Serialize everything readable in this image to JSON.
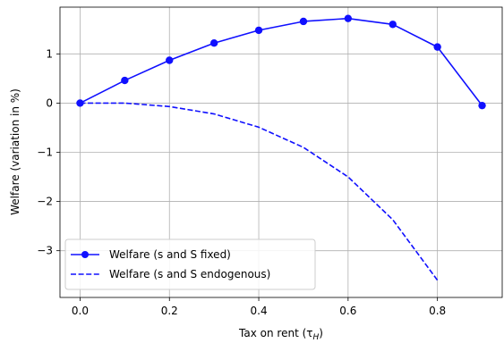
{
  "chart_data": {
    "type": "line",
    "title": "",
    "xlabel": "Tax on rent (τ",
    "xlabel_sub": "H",
    "xlabel_close": ")",
    "ylabel": "Welfare (variation in %)",
    "xlim": [
      -0.045,
      0.945
    ],
    "ylim": [
      -3.95,
      1.95
    ],
    "x_ticks": [
      0.0,
      0.2,
      0.4,
      0.6,
      0.8
    ],
    "x_tick_labels": [
      "0.0",
      "0.2",
      "0.4",
      "0.6",
      "0.8"
    ],
    "y_ticks": [
      1,
      0,
      -1,
      -2,
      -3
    ],
    "y_tick_labels": [
      "1",
      "0",
      "−1",
      "−2",
      "−3"
    ],
    "grid": true,
    "legend_position": "bottom-left",
    "series": [
      {
        "name": "Welfare (s and S fixed)",
        "style": "solid-with-markers",
        "color": "#1010ff",
        "x": [
          0.0,
          0.1,
          0.2,
          0.3,
          0.4,
          0.5,
          0.6,
          0.7,
          0.8,
          0.9
        ],
        "y": [
          0.0,
          0.46,
          0.87,
          1.22,
          1.48,
          1.66,
          1.72,
          1.6,
          1.14,
          -0.05
        ]
      },
      {
        "name": "Welfare (s and S endogenous)",
        "style": "dashed",
        "color": "#1010ff",
        "x": [
          0.0,
          0.1,
          0.2,
          0.3,
          0.4,
          0.5,
          0.6,
          0.7,
          0.8
        ],
        "y": [
          0.0,
          0.0,
          -0.07,
          -0.22,
          -0.49,
          -0.9,
          -1.5,
          -2.37,
          -3.6
        ]
      }
    ]
  }
}
